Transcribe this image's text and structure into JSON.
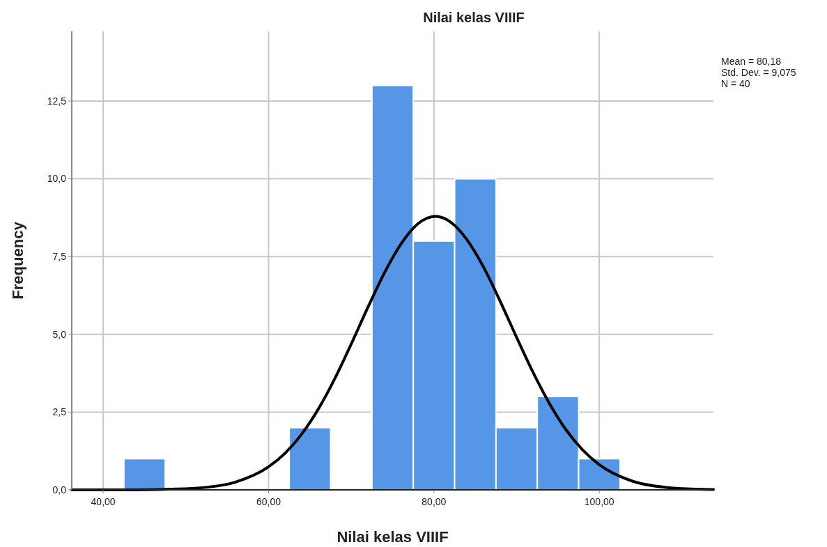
{
  "chart_data": {
    "type": "histogram",
    "title": "Nilai kelas VIIIF",
    "xlabel": "Nilai kelas VIIIF",
    "ylabel": "Frequency",
    "bins": [
      42.5,
      47.5,
      52.5,
      57.5,
      62.5,
      67.5,
      72.5,
      77.5,
      82.5,
      87.5,
      92.5,
      97.5,
      102.5
    ],
    "values": [
      1,
      0,
      0,
      0,
      2,
      0,
      13,
      8,
      10,
      2,
      3,
      1
    ],
    "color": "#5596e6",
    "series": [
      {
        "type": "line",
        "color": "#000000",
        "x": [
          36.2,
          40,
          44,
          48,
          52,
          56,
          60,
          62,
          64,
          66,
          68,
          70,
          72,
          74,
          76,
          78,
          80.18,
          82,
          84,
          86,
          88,
          90,
          92,
          94,
          96,
          98,
          100,
          104,
          108,
          112,
          113.8
        ],
        "values": [
          0,
          0,
          0,
          0.02,
          0.07,
          0.25,
          0.74,
          1.18,
          1.79,
          2.59,
          3.57,
          4.69,
          5.86,
          6.97,
          7.9,
          8.54,
          8.79,
          8.61,
          8.04,
          7.16,
          6.07,
          4.9,
          3.77,
          2.76,
          1.92,
          1.28,
          0.81,
          0.28,
          0.08,
          0.02,
          0.01
        ]
      }
    ],
    "xlim": [
      36.2,
      113.8
    ],
    "ylim": [
      0,
      14.74
    ],
    "xticks": [
      {
        "value": 40,
        "label": "40,00"
      },
      {
        "value": 60,
        "label": "60,00"
      },
      {
        "value": 80,
        "label": "80,00"
      },
      {
        "value": 100,
        "label": "100,00"
      }
    ],
    "yticks": [
      {
        "value": 0,
        "label": "0,0"
      },
      {
        "value": 2.5,
        "label": "2,5"
      },
      {
        "value": 5,
        "label": "5,0"
      },
      {
        "value": 7.5,
        "label": "7,5"
      },
      {
        "value": 10,
        "label": "10,0"
      },
      {
        "value": 12.5,
        "label": "12,5"
      }
    ],
    "grid": true,
    "annotations": [
      "Mean = 80,18",
      "Std. Dev. = 9,075",
      "N = 40"
    ]
  }
}
